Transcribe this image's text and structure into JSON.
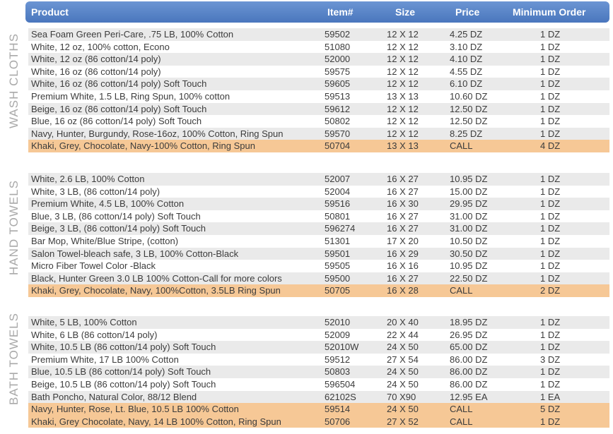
{
  "header": {
    "product": "Product",
    "item": "Item#",
    "size": "Size",
    "price": "Price",
    "min_order": "Minimum Order"
  },
  "sections": [
    {
      "label": "WASH CLOTHS",
      "rows": [
        {
          "product": "Sea Foam Green Peri-Care, .75 LB, 100% Cotton",
          "item": "59502",
          "size": "12 X 12",
          "price": "4.25 DZ",
          "min": "1 DZ"
        },
        {
          "product": "White, 12 oz, 100% cotton, Econo",
          "item": "51080",
          "size": "12 X 12",
          "price": "3.10 DZ",
          "min": "1 DZ"
        },
        {
          "product": "White, 12 oz (86 cotton/14 poly)",
          "item": "52000",
          "size": "12 X 12",
          "price": "4.10 DZ",
          "min": "1 DZ"
        },
        {
          "product": "White, 16 oz (86 cotton/14 poly)",
          "item": "59575",
          "size": "12 X 12",
          "price": "4.55 DZ",
          "min": "1 DZ"
        },
        {
          "product": "White, 16 oz (86 cotton/14 poly) Soft Touch",
          "item": "59605",
          "size": "12 X 12",
          "price": "6.10 DZ",
          "min": "1 DZ"
        },
        {
          "product": "Premium White, 1.5 LB, Ring Spun, 100% cotton",
          "item": "59513",
          "size": "13 X 13",
          "price": "10.60 DZ",
          "min": "1 DZ"
        },
        {
          "product": "Beige, 16 oz (86 cotton/14 poly) Soft Touch",
          "item": "59612",
          "size": "12 X 12",
          "price": "12.50 DZ",
          "min": "1 DZ"
        },
        {
          "product": "Blue, 16 oz (86 cotton/14 poly) Soft Touch",
          "item": "50802",
          "size": "12 X 12",
          "price": "12.50 DZ",
          "min": "1 DZ"
        },
        {
          "product": "Navy, Hunter, Burgundy, Rose-16oz, 100% Cotton, Ring Spun",
          "item": "59570",
          "size": "12 X 12",
          "price": "8.25 DZ",
          "min": "1 DZ"
        },
        {
          "product": "Khaki, Grey, Chocolate, Navy-100% Cotton, Ring Spun",
          "item": "50704",
          "size": "13 X 13",
          "price": "CALL",
          "min": "4 DZ"
        }
      ]
    },
    {
      "label": "HAND TOWELS",
      "rows": [
        {
          "product": "White, 2.6 LB, 100% Cotton",
          "item": "52007",
          "size": "16 X 27",
          "price": "10.95 DZ",
          "min": "1 DZ"
        },
        {
          "product": "White, 3 LB, (86 cotton/14 poly)",
          "item": "52004",
          "size": "16 X 27",
          "price": "15.00 DZ",
          "min": "1 DZ"
        },
        {
          "product": "Premium White, 4.5 LB, 100% Cotton",
          "item": "59516",
          "size": "16 X 30",
          "price": "29.95 DZ",
          "min": "1 DZ"
        },
        {
          "product": "Blue, 3 LB, (86 cotton/14 poly) Soft Touch",
          "item": "50801",
          "size": "16 X 27",
          "price": "31.00 DZ",
          "min": "1 DZ"
        },
        {
          "product": "Beige, 3 LB, (86 cotton/14 poly) Soft Touch",
          "item": "596274",
          "size": "16 X 27",
          "price": "31.00 DZ",
          "min": "1 DZ"
        },
        {
          "product": "Bar Mop, White/Blue Stripe, (cotton)",
          "item": "51301",
          "size": "17 X 20",
          "price": "10.50 DZ",
          "min": "1 DZ"
        },
        {
          "product": "Salon Towel-bleach safe, 3 LB, 100% Cotton-Black",
          "item": "59501",
          "size": "16 X 29",
          "price": "30.50 DZ",
          "min": "1 DZ"
        },
        {
          "product": "Micro Fiber Towel Color -Black",
          "item": "59505",
          "size": "16 X 16",
          "price": "10.95 DZ",
          "min": "1 DZ"
        },
        {
          "product": "Black, Hunter Green 3.0 LB 100% Cotton-Call for more colors",
          "item": "59500",
          "size": "16 X 27",
          "price": "22.50 DZ",
          "min": "1 DZ"
        },
        {
          "product": "Khaki, Grey, Chocolate, Navy, 100%Cotton, 3.5LB Ring Spun",
          "item": "50705",
          "size": "16 X 28",
          "price": "CALL",
          "min": "2 DZ"
        }
      ]
    },
    {
      "label": "BATH TOWELS",
      "rows": [
        {
          "product": "White, 5 LB, 100% Cotton",
          "item": "52010",
          "size": "20 X 40",
          "price": "18.95 DZ",
          "min": "1 DZ"
        },
        {
          "product": "White, 6 LB (86 cotton/14 poly)",
          "item": "52009",
          "size": "22 X 44",
          "price": "26.95 DZ",
          "min": "1 DZ"
        },
        {
          "product": "White, 10.5 LB (86 cotton/14 poly) Soft Touch",
          "item": "52010W",
          "size": "24 X 50",
          "price": "65.00 DZ",
          "min": "1 DZ"
        },
        {
          "product": "Premium White, 17 LB 100% Cotton",
          "item": "59512",
          "size": "27 X 54",
          "price": "86.00 DZ",
          "min": "3 DZ"
        },
        {
          "product": "Blue, 10.5 LB (86 cotton/14 poly) Soft Touch",
          "item": "50803",
          "size": "24 X 50",
          "price": "86.00 DZ",
          "min": "1 DZ"
        },
        {
          "product": "Beige, 10.5 LB (86 cotton/14 poly) Soft Touch",
          "item": "596504",
          "size": "24 X 50",
          "price": "86.00 DZ",
          "min": "1 DZ"
        },
        {
          "product": "Bath Poncho, Natural Color, 88/12 Blend",
          "item": "62102S",
          "size": "70 X90",
          "price": "12.95 EA",
          "min": "1 EA"
        },
        {
          "product": "Navy, Hunter, Rose, Lt. Blue, 10.5 LB 100% Cotton",
          "item": "59514",
          "size": "24 X 50",
          "price": "CALL",
          "min": "5 DZ"
        },
        {
          "product": "Khaki, Grey Chocolate, Navy, 14 LB 100% Cotton, Ring Spun",
          "item": "50706",
          "size": "27 X 52",
          "price": "CALL",
          "min": "1 DZ"
        }
      ]
    }
  ],
  "colors": {
    "header": "#5a86c8",
    "row_alt": "#eaeaea",
    "row_highlight": "#f6c896",
    "side_label": "#a9a9a9"
  }
}
